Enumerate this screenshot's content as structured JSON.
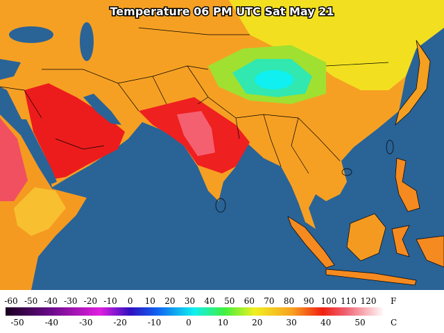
{
  "title": "Temperature 06 PM UTC Sat May 21",
  "colorbar": {
    "fahrenheit": {
      "unit": "F",
      "ticks": [
        -60,
        -50,
        -40,
        -30,
        -20,
        -10,
        0,
        10,
        20,
        30,
        40,
        50,
        60,
        70,
        80,
        90,
        100,
        110,
        120
      ]
    },
    "celsius": {
      "unit": "C",
      "ticks": [
        -50,
        -40,
        -30,
        -20,
        -10,
        0,
        10,
        20,
        30,
        40,
        50
      ]
    }
  }
}
